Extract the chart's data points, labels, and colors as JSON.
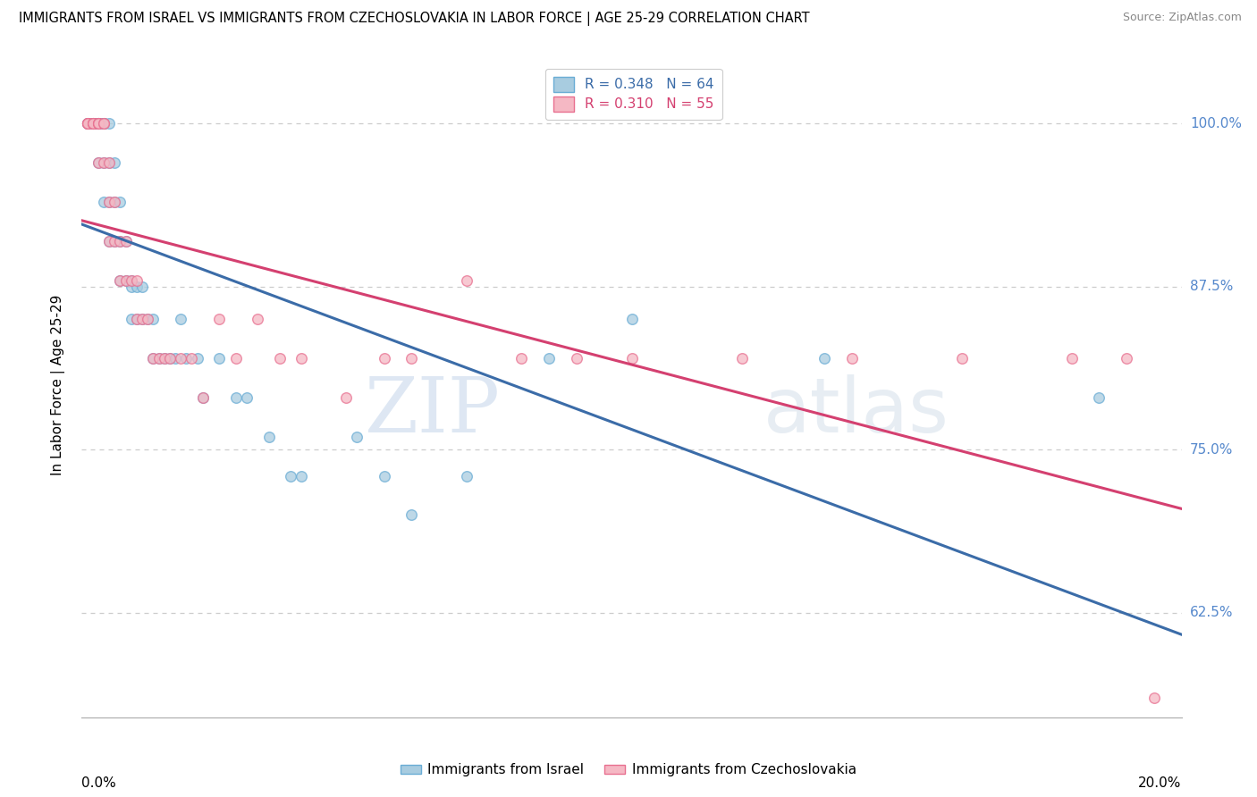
{
  "title": "IMMIGRANTS FROM ISRAEL VS IMMIGRANTS FROM CZECHOSLOVAKIA IN LABOR FORCE | AGE 25-29 CORRELATION CHART",
  "source_text": "Source: ZipAtlas.com",
  "ylabel": "In Labor Force | Age 25-29",
  "xlim": [
    0.0,
    0.2
  ],
  "ylim": [
    0.545,
    1.055
  ],
  "ytick_vals": [
    0.625,
    0.75,
    0.875,
    1.0
  ],
  "ytick_labels": [
    "62.5%",
    "75.0%",
    "87.5%",
    "100.0%"
  ],
  "israel_color": "#a8cce0",
  "israel_edge_color": "#6aadd5",
  "israel_line_color": "#3b6ca8",
  "czech_color": "#f5b8c4",
  "czech_edge_color": "#e87090",
  "czech_line_color": "#d44070",
  "R_israel": 0.348,
  "N_israel": 64,
  "R_czech": 0.31,
  "N_czech": 55,
  "legend_label_israel": "Immigrants from Israel",
  "legend_label_czech": "Immigrants from Czechoslovakia",
  "watermark_zip": "ZIP",
  "watermark_atlas": "atlas",
  "title_fontsize": 10.5,
  "axis_label_fontsize": 11,
  "tick_label_fontsize": 11,
  "legend_fontsize": 11,
  "marker_size": 70,
  "israel_x": [
    0.001,
    0.001,
    0.001,
    0.002,
    0.002,
    0.002,
    0.002,
    0.003,
    0.003,
    0.003,
    0.003,
    0.003,
    0.003,
    0.003,
    0.004,
    0.004,
    0.004,
    0.004,
    0.004,
    0.004,
    0.005,
    0.005,
    0.005,
    0.005,
    0.006,
    0.006,
    0.006,
    0.007,
    0.007,
    0.007,
    0.008,
    0.008,
    0.009,
    0.009,
    0.009,
    0.01,
    0.01,
    0.011,
    0.011,
    0.012,
    0.013,
    0.013,
    0.014,
    0.015,
    0.016,
    0.017,
    0.018,
    0.019,
    0.021,
    0.022,
    0.025,
    0.028,
    0.03,
    0.034,
    0.038,
    0.04,
    0.05,
    0.055,
    0.06,
    0.07,
    0.085,
    0.1,
    0.135,
    0.185
  ],
  "israel_y": [
    1.0,
    1.0,
    1.0,
    1.0,
    1.0,
    1.0,
    1.0,
    1.0,
    1.0,
    1.0,
    1.0,
    1.0,
    1.0,
    0.97,
    1.0,
    1.0,
    1.0,
    1.0,
    0.97,
    0.94,
    1.0,
    0.97,
    0.94,
    0.91,
    0.97,
    0.94,
    0.91,
    0.94,
    0.91,
    0.88,
    0.91,
    0.88,
    0.88,
    0.875,
    0.85,
    0.875,
    0.85,
    0.875,
    0.85,
    0.85,
    0.85,
    0.82,
    0.82,
    0.82,
    0.82,
    0.82,
    0.85,
    0.82,
    0.82,
    0.79,
    0.82,
    0.79,
    0.79,
    0.76,
    0.73,
    0.73,
    0.76,
    0.73,
    0.7,
    0.73,
    0.82,
    0.85,
    0.82,
    0.79
  ],
  "czech_x": [
    0.001,
    0.001,
    0.001,
    0.001,
    0.002,
    0.002,
    0.002,
    0.002,
    0.003,
    0.003,
    0.003,
    0.003,
    0.003,
    0.004,
    0.004,
    0.004,
    0.005,
    0.005,
    0.005,
    0.006,
    0.006,
    0.007,
    0.007,
    0.008,
    0.008,
    0.009,
    0.01,
    0.01,
    0.011,
    0.012,
    0.013,
    0.014,
    0.015,
    0.016,
    0.018,
    0.02,
    0.022,
    0.025,
    0.028,
    0.032,
    0.036,
    0.04,
    0.048,
    0.055,
    0.06,
    0.07,
    0.08,
    0.09,
    0.1,
    0.12,
    0.14,
    0.16,
    0.18,
    0.19,
    0.195
  ],
  "czech_y": [
    1.0,
    1.0,
    1.0,
    1.0,
    1.0,
    1.0,
    1.0,
    1.0,
    1.0,
    1.0,
    1.0,
    1.0,
    0.97,
    1.0,
    1.0,
    0.97,
    0.97,
    0.94,
    0.91,
    0.94,
    0.91,
    0.91,
    0.88,
    0.91,
    0.88,
    0.88,
    0.88,
    0.85,
    0.85,
    0.85,
    0.82,
    0.82,
    0.82,
    0.82,
    0.82,
    0.82,
    0.79,
    0.85,
    0.82,
    0.85,
    0.82,
    0.82,
    0.79,
    0.82,
    0.82,
    0.88,
    0.82,
    0.82,
    0.82,
    0.82,
    0.82,
    0.82,
    0.82,
    0.82,
    0.56
  ]
}
